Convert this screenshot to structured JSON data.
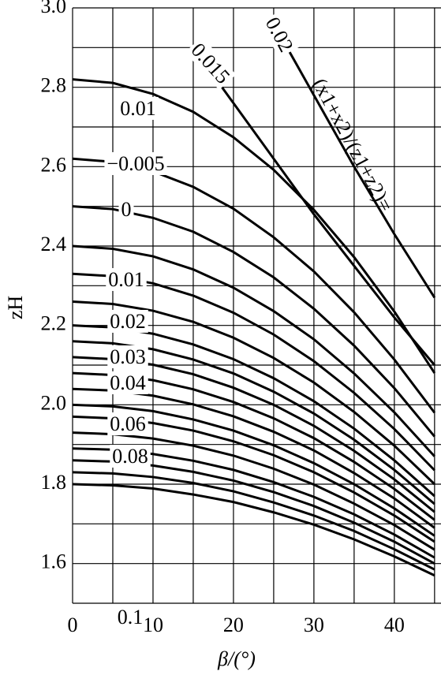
{
  "chart_data": {
    "type": "line",
    "x_label": "β/(°)",
    "y_label": "zH",
    "annotation": "(x1+x2)/(z1+z2)=",
    "x": [
      0,
      5,
      10,
      15,
      20,
      25,
      30,
      35,
      40,
      45
    ],
    "xlim": [
      0,
      45.8
    ],
    "ylim": [
      1.5,
      3.0
    ],
    "xticks": [
      0,
      10,
      20,
      30,
      40
    ],
    "yticks": [
      1.6,
      1.8,
      {
        "value": 2,
        "label": "2.0"
      },
      2.2,
      2.4,
      2.6,
      2.8,
      {
        "value": 3,
        "label": "3.0"
      }
    ],
    "xgrid": [
      0,
      5,
      10,
      15,
      20,
      25,
      30,
      35,
      40,
      45
    ],
    "ygrid": [
      1.5,
      1.6,
      1.7,
      1.8,
      1.9,
      2.0,
      2.1,
      2.2,
      2.3,
      2.4,
      2.5,
      2.6,
      2.7,
      2.8,
      2.9,
      3.0
    ],
    "color": "#000000",
    "series": [
      {
        "name": "0.1",
        "values": [
          1.8,
          1.797,
          1.789,
          1.774,
          1.755,
          1.729,
          1.698,
          1.661,
          1.618,
          1.57
        ]
      },
      {
        "values": [
          1.83,
          1.827,
          1.818,
          1.803,
          1.782,
          1.754,
          1.721,
          1.682,
          1.636,
          1.585
        ]
      },
      {
        "name": "0.08",
        "values": [
          1.86,
          1.857,
          1.847,
          1.831,
          1.809,
          1.78,
          1.745,
          1.703,
          1.655,
          1.6
        ]
      },
      {
        "values": [
          1.89,
          1.887,
          1.876,
          1.859,
          1.836,
          1.805,
          1.768,
          1.724,
          1.673,
          1.615
        ]
      },
      {
        "name": "0.06",
        "values": [
          1.93,
          1.926,
          1.915,
          1.897,
          1.872,
          1.839,
          1.799,
          1.751,
          1.697,
          1.635
        ]
      },
      {
        "values": [
          1.97,
          1.966,
          1.954,
          1.935,
          1.908,
          1.873,
          1.83,
          1.779,
          1.721,
          1.655
        ]
      },
      {
        "values": [
          2.0,
          1.996,
          1.984,
          1.963,
          1.935,
          1.898,
          1.853,
          1.8,
          1.739,
          1.67
        ]
      },
      {
        "name": "0.04",
        "values": [
          2.04,
          2.036,
          2.023,
          2.001,
          1.971,
          1.932,
          1.885,
          1.828,
          1.764,
          1.69
        ]
      },
      {
        "values": [
          2.08,
          2.075,
          2.062,
          2.039,
          2.007,
          1.966,
          1.916,
          1.856,
          1.788,
          1.71
        ]
      },
      {
        "name": "0.03",
        "values": [
          2.12,
          2.115,
          2.101,
          2.077,
          2.043,
          2.0,
          1.947,
          1.884,
          1.812,
          1.73
        ]
      },
      {
        "values": [
          2.16,
          2.155,
          2.14,
          2.114,
          2.079,
          2.033,
          1.978,
          1.912,
          1.836,
          1.75
        ]
      },
      {
        "name": "0.02",
        "values": [
          2.2,
          2.195,
          2.179,
          2.152,
          2.115,
          2.067,
          2.009,
          1.94,
          1.86,
          1.77
        ]
      },
      {
        "values": [
          2.26,
          2.254,
          2.237,
          2.209,
          2.169,
          2.118,
          2.056,
          1.982,
          1.897,
          1.8
        ]
      },
      {
        "name": "0.01",
        "values": [
          2.33,
          2.324,
          2.306,
          2.275,
          2.232,
          2.177,
          2.11,
          2.03,
          1.939,
          1.835
        ]
      },
      {
        "values": [
          2.4,
          2.393,
          2.374,
          2.341,
          2.295,
          2.236,
          2.165,
          2.079,
          1.981,
          1.87
        ]
      },
      {
        "name": "0",
        "values": [
          2.5,
          2.493,
          2.471,
          2.436,
          2.385,
          2.321,
          2.242,
          2.149,
          2.042,
          1.92
        ]
      },
      {
        "name": "−0.005",
        "values": [
          2.62,
          2.612,
          2.588,
          2.549,
          2.494,
          2.422,
          2.336,
          2.233,
          2.114,
          1.98
        ]
      },
      {
        "name": "0.01",
        "values": [
          2.82,
          2.811,
          2.783,
          2.738,
          2.674,
          2.592,
          2.491,
          2.372,
          2.235,
          2.08
        ]
      },
      {
        "name": "0.015",
        "values": [
          null,
          null,
          null,
          2.9,
          2.76,
          2.62,
          2.48,
          2.35,
          2.22,
          2.1
        ]
      },
      {
        "name": "0.02",
        "values": [
          null,
          null,
          null,
          null,
          null,
          2.96,
          2.78,
          2.6,
          2.43,
          2.27
        ]
      }
    ]
  }
}
